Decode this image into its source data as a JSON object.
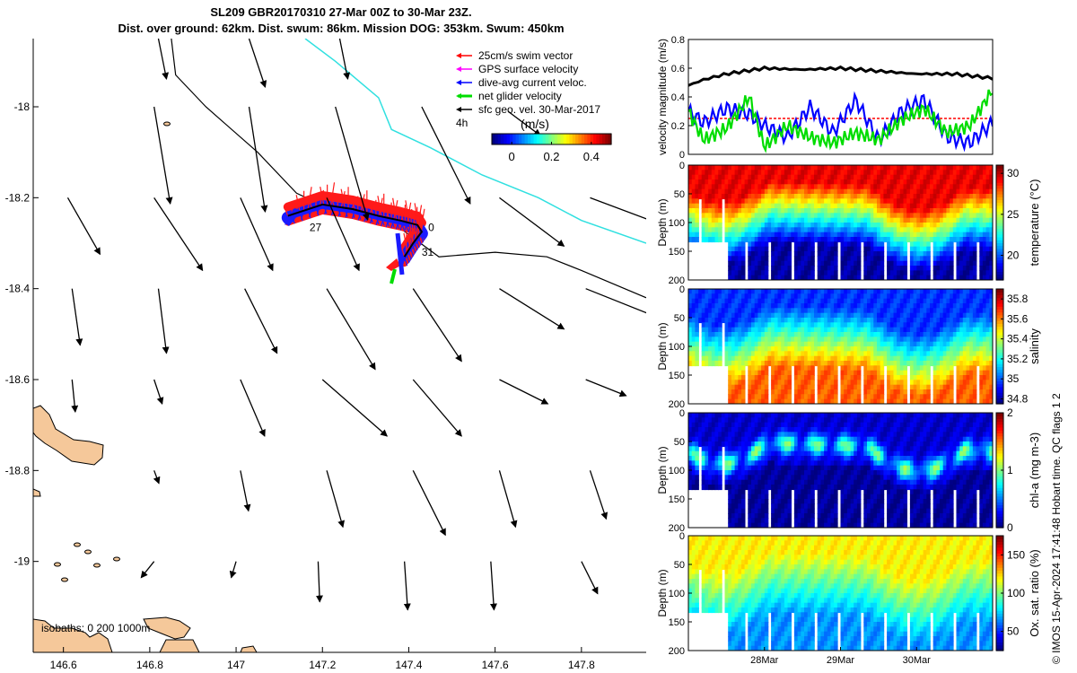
{
  "title_line1": "SL209 GBR20170310 27-Mar 00Z to 30-Mar 23Z.",
  "title_line2": "Dist. over ground: 62km. Dist. swum: 86km. Mission DOG: 353km. Swum: 450km",
  "footer": "© IMOS 15-Apr-2024 17:41:48 Hobart time. QC flags 1  2",
  "chart_data": [
    {
      "type": "map",
      "xlim": [
        146.53,
        147.95
      ],
      "ylim": [
        -19.2,
        -17.85
      ],
      "x_ticks": [
        146.6,
        146.8,
        147.0,
        147.2,
        147.4,
        147.6,
        147.8
      ],
      "x_tick_labels": [
        "146.6",
        "146.8",
        "147",
        "147.2",
        "147.4",
        "147.6",
        "147.8"
      ],
      "y_ticks": [
        -18.0,
        -18.2,
        -18.4,
        -18.6,
        -18.8,
        -19.0
      ],
      "y_tick_labels": [
        "-18",
        "-18.2",
        "-18.4",
        "-18.6",
        "-18.8",
        "-19"
      ],
      "legend": [
        {
          "label": "25cm/s swim vector",
          "color": "#ff0000"
        },
        {
          "label": "GPS surface velocity",
          "color": "#ff00ff"
        },
        {
          "label": "dive-avg current veloc.",
          "color": "#0000ff"
        },
        {
          "label": "net glider velocity",
          "color": "#00dd00"
        },
        {
          "label": "sfc geo. vel. 30-Mar-2017",
          "color": "#000000"
        }
      ],
      "scale_label": "4h",
      "colorbar_label": "(m/s)",
      "colorbar_ticks": [
        0,
        0.2,
        0.4
      ],
      "colorbar_tick_labels": [
        "0",
        "0.2",
        "0.4"
      ],
      "colorbar_range": [
        -0.1,
        0.5
      ],
      "isobaths_label": "isobaths: 0   200  1000m",
      "day_labels": [
        {
          "text": "27",
          "lon": 147.17,
          "lat": -18.265
        },
        {
          "text": "0",
          "lon": 147.445,
          "lat": -18.265
        },
        {
          "text": "31",
          "lon": 147.43,
          "lat": -18.32
        }
      ],
      "glider_track": [
        [
          147.12,
          -18.24
        ],
        [
          147.2,
          -18.215
        ],
        [
          147.27,
          -18.225
        ],
        [
          147.33,
          -18.24
        ],
        [
          147.38,
          -18.25
        ],
        [
          147.42,
          -18.26
        ],
        [
          147.43,
          -18.275
        ],
        [
          147.41,
          -18.3
        ],
        [
          147.39,
          -18.33
        ]
      ],
      "isobath_200": [
        [
          146.85,
          -17.85
        ],
        [
          146.86,
          -17.93
        ],
        [
          146.93,
          -18.0
        ],
        [
          147.05,
          -18.1
        ],
        [
          147.14,
          -18.19
        ],
        [
          147.23,
          -18.23
        ],
        [
          147.3,
          -18.24
        ],
        [
          147.37,
          -18.26
        ],
        [
          147.47,
          -18.33
        ],
        [
          147.6,
          -18.32
        ],
        [
          147.72,
          -18.33
        ],
        [
          147.8,
          -18.36
        ],
        [
          147.95,
          -18.42
        ]
      ],
      "isobath_1000": [
        [
          147.16,
          -17.85
        ],
        [
          147.23,
          -17.9
        ],
        [
          147.33,
          -17.98
        ],
        [
          147.36,
          -18.05
        ],
        [
          147.45,
          -18.09
        ],
        [
          147.57,
          -18.15
        ],
        [
          147.7,
          -18.2
        ],
        [
          147.8,
          -18.25
        ],
        [
          147.95,
          -18.3
        ]
      ],
      "vectors": [
        {
          "lon": 146.82,
          "lat": -17.85,
          "u": 0.005,
          "v": -0.025
        },
        {
          "lon": 147.03,
          "lat": -17.85,
          "u": 0.01,
          "v": -0.03
        },
        {
          "lon": 147.24,
          "lat": -17.85,
          "u": 0.005,
          "v": -0.025
        },
        {
          "lon": 146.81,
          "lat": -18.0,
          "u": 0.01,
          "v": -0.06
        },
        {
          "lon": 147.03,
          "lat": -18.0,
          "u": 0.01,
          "v": -0.065
        },
        {
          "lon": 147.23,
          "lat": -18.0,
          "u": 0.02,
          "v": -0.07
        },
        {
          "lon": 147.43,
          "lat": -18.0,
          "u": 0.03,
          "v": -0.06
        },
        {
          "lon": 147.63,
          "lat": -18.01,
          "u": 0.02,
          "v": -0.015
        },
        {
          "lon": 146.61,
          "lat": -18.2,
          "u": 0.02,
          "v": -0.035
        },
        {
          "lon": 146.81,
          "lat": -18.2,
          "u": 0.03,
          "v": -0.045
        },
        {
          "lon": 147.01,
          "lat": -18.2,
          "u": 0.02,
          "v": -0.045
        },
        {
          "lon": 147.21,
          "lat": -18.2,
          "u": 0.02,
          "v": -0.045
        },
        {
          "lon": 147.61,
          "lat": -18.2,
          "u": 0.04,
          "v": -0.03
        },
        {
          "lon": 147.82,
          "lat": -18.2,
          "u": 0.04,
          "v": -0.015
        },
        {
          "lon": 146.62,
          "lat": -18.4,
          "u": 0.005,
          "v": -0.035
        },
        {
          "lon": 146.82,
          "lat": -18.4,
          "u": 0.005,
          "v": -0.04
        },
        {
          "lon": 147.02,
          "lat": -18.4,
          "u": 0.02,
          "v": -0.04
        },
        {
          "lon": 147.21,
          "lat": -18.4,
          "u": 0.03,
          "v": -0.05
        },
        {
          "lon": 147.41,
          "lat": -18.4,
          "u": 0.03,
          "v": -0.045
        },
        {
          "lon": 147.61,
          "lat": -18.4,
          "u": 0.04,
          "v": -0.025
        },
        {
          "lon": 147.81,
          "lat": -18.4,
          "u": 0.05,
          "v": -0.02
        },
        {
          "lon": 146.62,
          "lat": -18.6,
          "u": 0.002,
          "v": -0.02
        },
        {
          "lon": 146.81,
          "lat": -18.6,
          "u": 0.005,
          "v": -0.015
        },
        {
          "lon": 147.01,
          "lat": -18.6,
          "u": 0.015,
          "v": -0.035
        },
        {
          "lon": 147.2,
          "lat": -18.6,
          "u": 0.04,
          "v": -0.035
        },
        {
          "lon": 147.41,
          "lat": -18.6,
          "u": 0.03,
          "v": -0.035
        },
        {
          "lon": 147.61,
          "lat": -18.6,
          "u": 0.03,
          "v": -0.015
        },
        {
          "lon": 147.81,
          "lat": -18.6,
          "u": 0.025,
          "v": -0.01
        },
        {
          "lon": 146.81,
          "lat": -18.8,
          "u": 0.003,
          "v": -0.008
        },
        {
          "lon": 147.01,
          "lat": -18.8,
          "u": 0.005,
          "v": -0.025
        },
        {
          "lon": 147.21,
          "lat": -18.8,
          "u": 0.01,
          "v": -0.035
        },
        {
          "lon": 147.41,
          "lat": -18.8,
          "u": 0.02,
          "v": -0.04
        },
        {
          "lon": 147.61,
          "lat": -18.8,
          "u": 0.01,
          "v": -0.035
        },
        {
          "lon": 147.82,
          "lat": -18.8,
          "u": 0.01,
          "v": -0.03
        },
        {
          "lon": 146.81,
          "lat": -19.0,
          "u": -0.008,
          "v": -0.01
        },
        {
          "lon": 147.0,
          "lat": -19.0,
          "u": -0.003,
          "v": -0.01
        },
        {
          "lon": 147.19,
          "lat": -19.0,
          "u": 0.001,
          "v": -0.025
        },
        {
          "lon": 147.39,
          "lat": -19.0,
          "u": 0.002,
          "v": -0.03
        },
        {
          "lon": 147.59,
          "lat": -19.0,
          "u": 0.002,
          "v": -0.03
        },
        {
          "lon": 147.8,
          "lat": -19.0,
          "u": 0.01,
          "v": -0.02
        }
      ]
    },
    {
      "type": "line",
      "ylabel": "velocity magnitude (m/s)",
      "ylim": [
        0,
        0.8
      ],
      "y_ticks": [
        0,
        0.2,
        0.4,
        0.6,
        0.8
      ],
      "y_tick_labels": [
        "0",
        "0.2",
        "0.4",
        "0.6",
        "0.8"
      ],
      "xlim": [
        27.0,
        31.0
      ],
      "series": [
        {
          "name": "sfc geo. vel.",
          "color": "#000000",
          "x": [
            27.0,
            27.2,
            27.5,
            28.0,
            28.5,
            29.0,
            29.5,
            30.0,
            30.5,
            31.0
          ],
          "values": [
            0.48,
            0.52,
            0.56,
            0.6,
            0.59,
            0.6,
            0.58,
            0.56,
            0.56,
            0.53
          ]
        },
        {
          "name": "25cm/s swim vector",
          "color": "#ff0000",
          "x": [
            27.0,
            31.0
          ],
          "values": [
            0.25,
            0.25
          ]
        },
        {
          "name": "dive-avg current veloc.",
          "color": "#0000ff",
          "x": [
            27.0,
            27.2,
            27.5,
            27.8,
            28.0,
            28.3,
            28.6,
            28.9,
            29.2,
            29.5,
            29.8,
            30.1,
            30.4,
            30.7,
            31.0
          ],
          "values": [
            0.3,
            0.22,
            0.32,
            0.28,
            0.2,
            0.12,
            0.33,
            0.15,
            0.38,
            0.1,
            0.3,
            0.38,
            0.12,
            0.08,
            0.22
          ]
        },
        {
          "name": "net glider velocity",
          "color": "#00dd00",
          "x": [
            27.0,
            27.2,
            27.5,
            27.8,
            28.0,
            28.3,
            28.6,
            28.9,
            29.2,
            29.5,
            29.8,
            30.1,
            30.4,
            30.7,
            31.0
          ],
          "values": [
            0.3,
            0.1,
            0.18,
            0.4,
            0.05,
            0.2,
            0.12,
            0.08,
            0.15,
            0.1,
            0.24,
            0.32,
            0.15,
            0.2,
            0.45
          ]
        }
      ]
    },
    {
      "type": "heatmap",
      "variable": "temperature",
      "colorbar_label": "temperature (°C)",
      "colorbar_range": [
        17,
        31
      ],
      "colorbar_ticks": [
        20,
        25,
        30
      ],
      "colorbar_tick_labels": [
        "20",
        "25",
        "30"
      ],
      "ylabel": "Depth (m)",
      "ylim": [
        0,
        200
      ],
      "y_ticks": [
        50,
        100,
        150,
        200
      ],
      "y_tick_labels": [
        "50",
        "100",
        "150",
        "200"
      ],
      "xlim": [
        27.0,
        31.0
      ],
      "top_value": 29.5,
      "deep_value": 17.5
    },
    {
      "type": "heatmap",
      "variable": "salinity",
      "colorbar_label": "salinity",
      "colorbar_range": [
        34.75,
        35.9
      ],
      "colorbar_ticks": [
        34.8,
        35.0,
        35.2,
        35.4,
        35.6,
        35.8
      ],
      "colorbar_tick_labels": [
        "34.8",
        "35",
        "35.2",
        "35.4",
        "35.6",
        "35.8"
      ],
      "ylabel": "Depth (m)",
      "ylim": [
        0,
        200
      ],
      "y_ticks": [
        50,
        100,
        150,
        200
      ],
      "y_tick_labels": [
        "50",
        "100",
        "150",
        "200"
      ],
      "xlim": [
        27.0,
        31.0
      ],
      "top_value": 34.95,
      "deep_value": 35.65
    },
    {
      "type": "heatmap",
      "variable": "chl-a",
      "colorbar_label": "chl-a (mg m-3)",
      "colorbar_range": [
        0,
        2
      ],
      "colorbar_ticks": [
        0,
        1,
        2
      ],
      "colorbar_tick_labels": [
        "0",
        "1",
        "2"
      ],
      "ylabel": "Depth (m)",
      "ylim": [
        0,
        200
      ],
      "y_ticks": [
        50,
        100,
        150,
        200
      ],
      "y_tick_labels": [
        "50",
        "100",
        "150",
        "200"
      ],
      "xlim": [
        27.0,
        31.0
      ],
      "top_value": 0.15,
      "deep_value": 0.05
    },
    {
      "type": "heatmap",
      "variable": "oxygen",
      "colorbar_label": "Ox. sat. ratio (%)",
      "colorbar_range": [
        25,
        175
      ],
      "colorbar_ticks": [
        50,
        100,
        150
      ],
      "colorbar_tick_labels": [
        "50",
        "100",
        "150"
      ],
      "ylabel": "Depth (m)",
      "ylim": [
        0,
        200
      ],
      "y_ticks": [
        50,
        100,
        150,
        200
      ],
      "y_tick_labels": [
        "50",
        "100",
        "150",
        "200"
      ],
      "xlim": [
        27.0,
        31.0
      ],
      "top_value": 120,
      "deep_value": 65,
      "x_ticks": [
        28.0,
        29.0,
        30.0
      ],
      "x_tick_labels": [
        "28Mar",
        "29Mar",
        "30Mar"
      ]
    }
  ]
}
